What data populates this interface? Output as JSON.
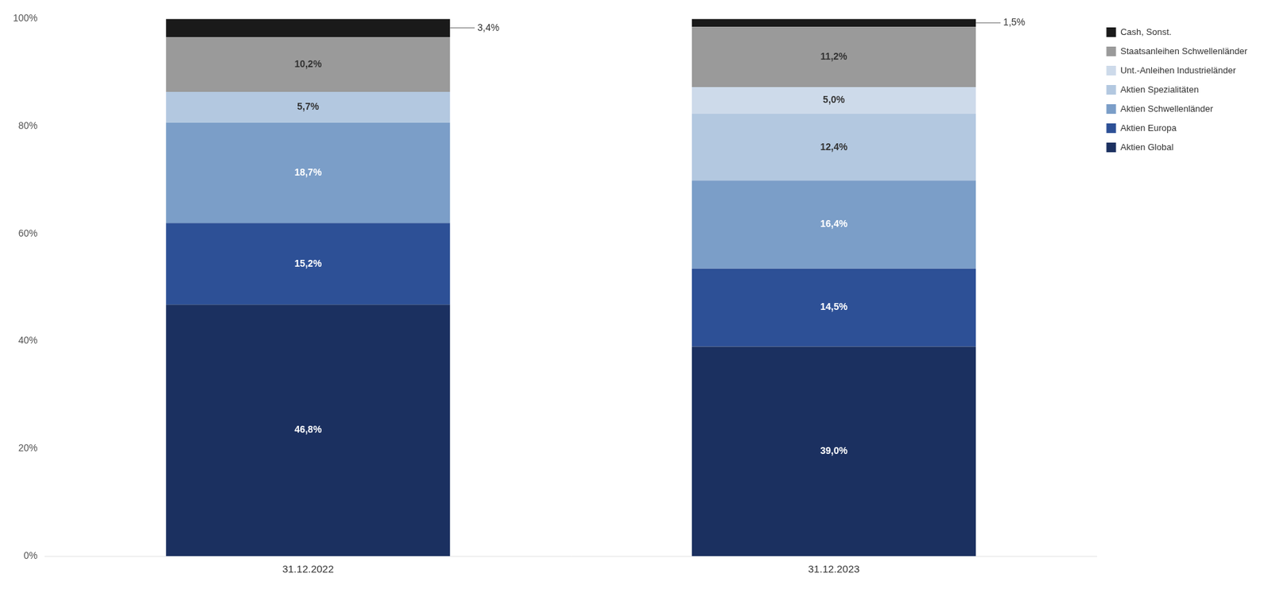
{
  "chart_data": {
    "type": "bar",
    "stacked": true,
    "categories": [
      "31.12.2022",
      "31.12.2023"
    ],
    "series": [
      {
        "name": "Aktien Global",
        "color": "#1b3060",
        "values": [
          46.8,
          39.0
        ],
        "value_labels": [
          "46,8%",
          "39,0%"
        ]
      },
      {
        "name": "Aktien Europa",
        "color": "#2d5096",
        "values": [
          15.2,
          14.5
        ],
        "value_labels": [
          "15,2%",
          "14,5%"
        ]
      },
      {
        "name": "Aktien Schwellenländer",
        "color": "#7b9ec8",
        "values": [
          18.7,
          16.4
        ],
        "value_labels": [
          "18,7%",
          "16,4%"
        ]
      },
      {
        "name": "Aktien Spezialitäten",
        "color": "#b3c8e0",
        "values": [
          5.7,
          12.4
        ],
        "value_labels": [
          "5,7%",
          "12,4%"
        ]
      },
      {
        "name": "Unt.-Anleihen Industrieländer",
        "color": "#cddaea",
        "values": [
          0.0,
          5.0
        ],
        "value_labels": [
          null,
          "5,0%"
        ]
      },
      {
        "name": "Staatsanleihen Schwellenländer",
        "color": "#9a9a9a",
        "values": [
          10.2,
          11.2
        ],
        "value_labels": [
          "10,2%",
          "11,2%"
        ]
      },
      {
        "name": "Cash, Sonst.",
        "color": "#1a1a1a",
        "values": [
          3.4,
          1.5
        ],
        "value_labels": [
          "3,4%",
          "1,5%"
        ]
      }
    ],
    "ylim": [
      0,
      100
    ],
    "yticks": [
      {
        "value": 0,
        "label": "0%"
      },
      {
        "value": 20,
        "label": "20%"
      },
      {
        "value": 40,
        "label": "40%"
      },
      {
        "value": 60,
        "label": "60%"
      },
      {
        "value": 80,
        "label": "80%"
      },
      {
        "value": 100,
        "label": "100%"
      }
    ],
    "data_labels": true,
    "grid": false,
    "legend": "right"
  }
}
